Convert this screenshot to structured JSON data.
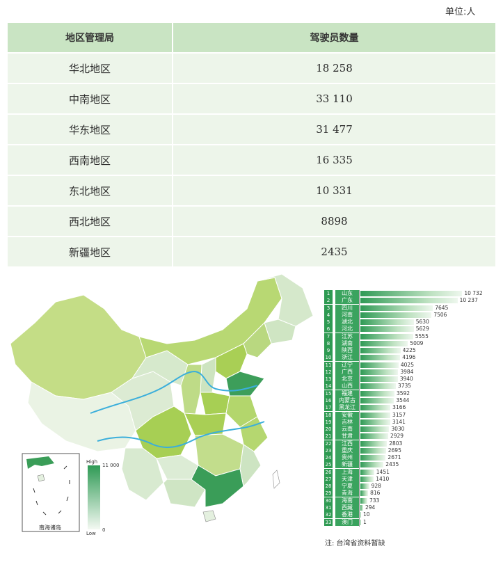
{
  "unit_label": "单位:人",
  "table": {
    "headers": [
      "地区管理局",
      "驾驶员数量"
    ],
    "rows": [
      [
        "华北地区",
        "18 258"
      ],
      [
        "中南地区",
        "33 110"
      ],
      [
        "华东地区",
        "31 477"
      ],
      [
        "西南地区",
        "16 335"
      ],
      [
        "东北地区",
        "10 331"
      ],
      [
        "西北地区",
        "8898"
      ],
      [
        "新疆地区",
        "2435"
      ]
    ]
  },
  "map": {
    "legend_high": "High",
    "legend_high_value": "11 000",
    "legend_low": "Low",
    "legend_low_value": "0",
    "inset_label": "南海诸岛",
    "colors": {
      "high": "#2f9a55",
      "mid": "#a9cf55",
      "low": "#e6f1e2",
      "river": "#3aaedb"
    }
  },
  "chart_data": {
    "type": "bar",
    "categories": [
      "山东",
      "广东",
      "四川",
      "河南",
      "湖北",
      "河北",
      "江苏",
      "湖南",
      "陕西",
      "浙江",
      "辽宁",
      "广西",
      "北京",
      "山西",
      "福建",
      "内蒙古",
      "黑龙江",
      "安徽",
      "吉林",
      "云南",
      "甘肃",
      "江西",
      "重庆",
      "贵州",
      "新疆",
      "上海",
      "天津",
      "宁夏",
      "青海",
      "海南",
      "西藏",
      "香港",
      "澳门"
    ],
    "ranks": [
      "1",
      "2",
      "3",
      "4",
      "5",
      "6",
      "7",
      "8",
      "9",
      "10",
      "11",
      "12",
      "13",
      "14",
      "15",
      "16",
      "17",
      "18",
      "19",
      "20",
      "21",
      "22",
      "23",
      "24",
      "25",
      "26",
      "27",
      "28",
      "29",
      "30",
      "31",
      "32",
      "33"
    ],
    "values": [
      10732,
      10237,
      7645,
      7506,
      5630,
      5629,
      5555,
      5009,
      4225,
      4196,
      4025,
      3984,
      3940,
      3735,
      3592,
      3544,
      3166,
      3157,
      3141,
      3030,
      2929,
      2803,
      2695,
      2671,
      2435,
      1451,
      1410,
      928,
      816,
      733,
      294,
      10,
      1
    ],
    "value_labels": [
      "10 732",
      "10 237",
      "7645",
      "7506",
      "5630",
      "5629",
      "5555",
      "5009",
      "4225",
      "4196",
      "4025",
      "3984",
      "3940",
      "3735",
      "3592",
      "3544",
      "3166",
      "3157",
      "3141",
      "3030",
      "2929",
      "2803",
      "2695",
      "2671",
      "2435",
      "1451",
      "1410",
      "928",
      "816",
      "733",
      "294",
      "10",
      "1"
    ],
    "xlim": [
      0,
      11000
    ]
  },
  "note": "注: 台湾省资料暂缺"
}
